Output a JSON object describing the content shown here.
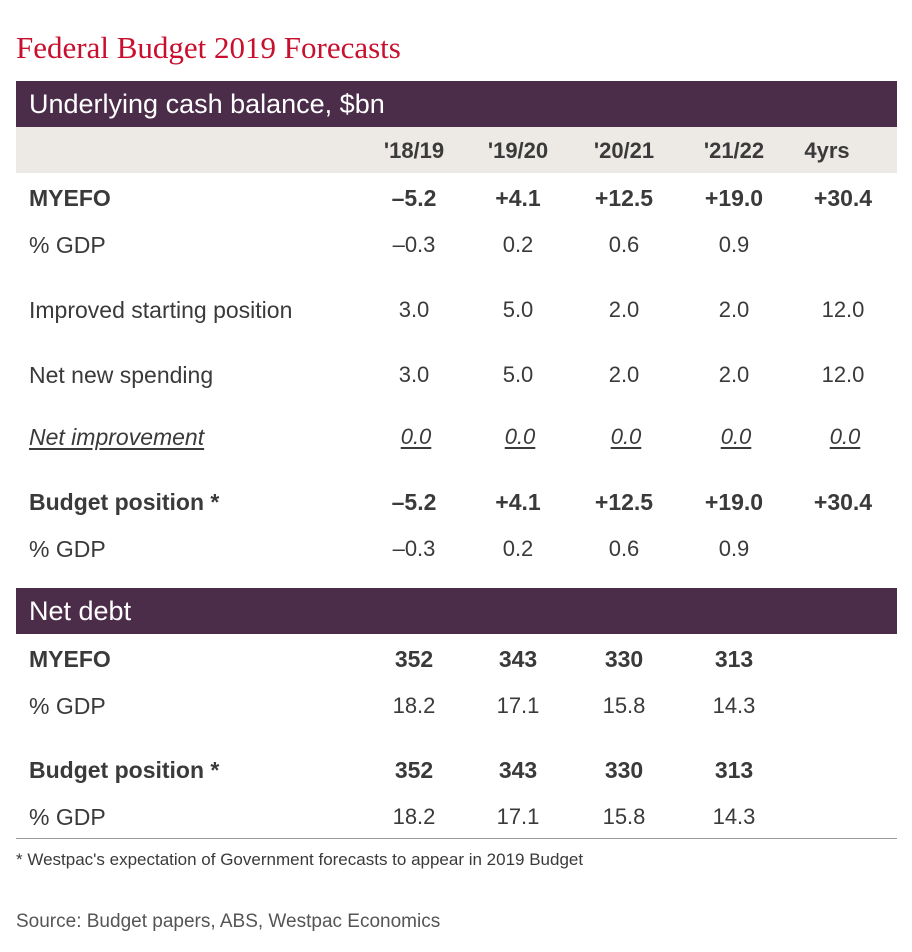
{
  "title": "Federal Budget 2019 Forecasts",
  "cash_section": {
    "heading": "Underlying cash balance, $bn",
    "columns": [
      "'18/19",
      "'19/20",
      "'20/21",
      "'21/22",
      "4yrs"
    ],
    "rows": [
      {
        "label": "MYEFO",
        "values": [
          "–5.2",
          "+4.1",
          "+12.5",
          "+19.0",
          "+30.4"
        ]
      },
      {
        "label": "% GDP",
        "values": [
          "–0.3",
          "0.2",
          "0.6",
          "0.9",
          ""
        ]
      },
      {
        "label": "Improved starting position",
        "values": [
          "3.0",
          "5.0",
          "2.0",
          "2.0",
          "12.0"
        ]
      },
      {
        "label": "Net new spending",
        "values": [
          "3.0",
          "5.0",
          "2.0",
          "2.0",
          "12.0"
        ]
      },
      {
        "label": "Net improvement",
        "values": [
          "0.0",
          "0.0",
          "0.0",
          "0.0",
          "0.0"
        ]
      },
      {
        "label": "Budget position *",
        "values": [
          "–5.2",
          "+4.1",
          "+12.5",
          "+19.0",
          "+30.4"
        ]
      },
      {
        "label": "% GDP",
        "values": [
          "–0.3",
          "0.2",
          "0.6",
          "0.9",
          ""
        ]
      }
    ]
  },
  "debt_section": {
    "heading": "Net debt",
    "rows": [
      {
        "label": "MYEFO",
        "values": [
          "352",
          "343",
          "330",
          "313",
          ""
        ]
      },
      {
        "label": "% GDP",
        "values": [
          "18.2",
          "17.1",
          "15.8",
          "14.3",
          ""
        ]
      },
      {
        "label": "Budget position *",
        "values": [
          "352",
          "343",
          "330",
          "313",
          ""
        ]
      },
      {
        "label": "% GDP",
        "values": [
          "18.2",
          "17.1",
          "15.8",
          "14.3",
          ""
        ]
      }
    ]
  },
  "footnote": "* Westpac's expectation of Government forecasts to appear in 2019 Budget",
  "source": "Source: Budget papers, ABS, Westpac Economics",
  "colors": {
    "title": "#c8102e",
    "band": "#4b2d4a",
    "header_row": "#ede9e4"
  }
}
